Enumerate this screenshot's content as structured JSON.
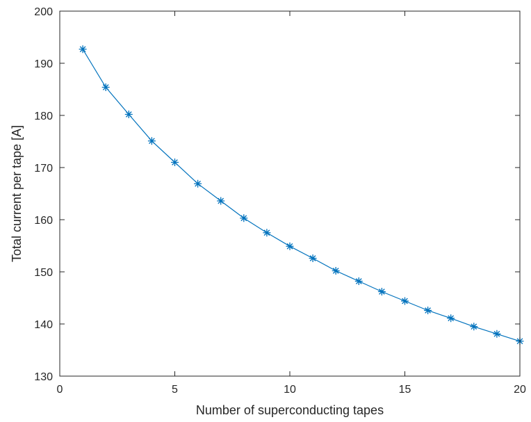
{
  "chart_data": {
    "type": "line",
    "xlabel": "Number of superconducting tapes",
    "ylabel": "Total current per tape [A]",
    "xlim": [
      0,
      20
    ],
    "ylim": [
      130,
      200
    ],
    "xticks": [
      0,
      5,
      10,
      15,
      20
    ],
    "yticks": [
      130,
      140,
      150,
      160,
      170,
      180,
      190,
      200
    ],
    "grid": false,
    "marker": "asterisk",
    "series": [
      {
        "color": "#0072BD",
        "x": [
          1,
          2,
          3,
          4,
          5,
          6,
          7,
          8,
          9,
          10,
          11,
          12,
          13,
          14,
          15,
          16,
          17,
          18,
          19,
          20
        ],
        "y": [
          192.7,
          185.4,
          180.2,
          175.1,
          171.0,
          166.9,
          163.6,
          160.3,
          157.5,
          154.9,
          152.6,
          150.2,
          148.2,
          146.2,
          144.4,
          142.6,
          141.1,
          139.5,
          138.1,
          136.7
        ]
      }
    ]
  }
}
